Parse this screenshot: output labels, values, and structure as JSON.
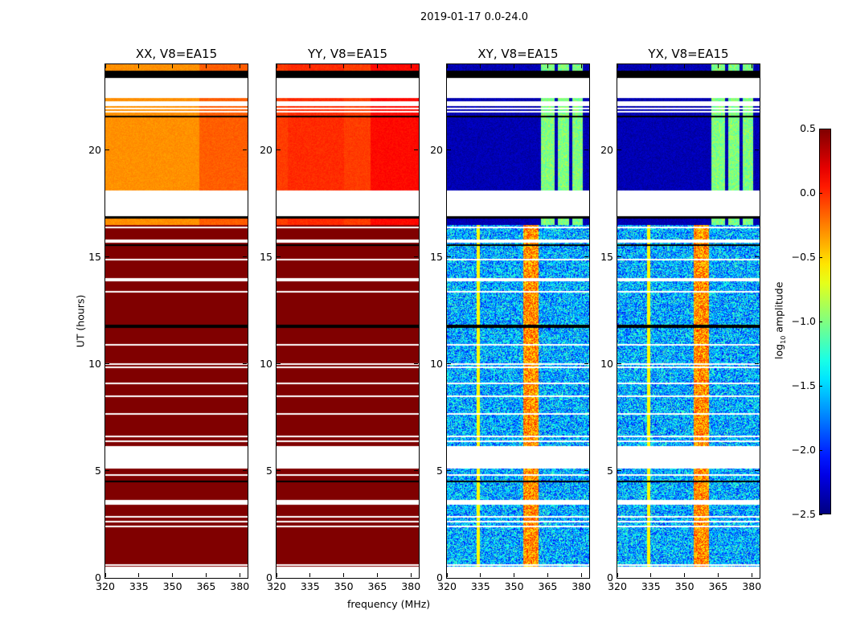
{
  "chart_data": {
    "type": "heatmap",
    "title": "2019-01-17 0.0-24.0",
    "xlabel": "frequency (MHz)",
    "ylabel": "UT (hours)",
    "xlim": [
      320,
      383.5
    ],
    "ylim": [
      0,
      24
    ],
    "xticks": [
      "320",
      "335",
      "350",
      "365",
      "380"
    ],
    "xtick_values": [
      320,
      335,
      350,
      365,
      380
    ],
    "yticks": [
      "0",
      "5",
      "10",
      "15",
      "20"
    ],
    "ytick_values": [
      0,
      5,
      10,
      15,
      20
    ],
    "panels": [
      {
        "title": "XX, V8=EA15",
        "model": "auto",
        "day_level": -0.3,
        "night_level": 0.5
      },
      {
        "title": "YY, V8=EA15",
        "model": "auto",
        "day_level": -0.05,
        "night_level": 0.5
      },
      {
        "title": "XY, V8=EA15",
        "model": "cross",
        "day_level": -2.35,
        "night_level": -1.6
      },
      {
        "title": "YX, V8=EA15",
        "model": "cross",
        "day_level": -2.35,
        "night_level": -1.6
      }
    ],
    "time_segments_hours": [
      {
        "from": 23.7,
        "to": 24.0,
        "kind": "data_day"
      },
      {
        "from": 23.35,
        "to": 23.7,
        "kind": "black"
      },
      {
        "from": 23.04,
        "to": 23.35,
        "kind": "flagged"
      },
      {
        "from": 21.6,
        "to": 23.04,
        "kind": "data_day_sparse"
      },
      {
        "from": 18.12,
        "to": 21.6,
        "kind": "data_day"
      },
      {
        "from": 16.92,
        "to": 18.12,
        "kind": "flagged"
      },
      {
        "from": 16.47,
        "to": 16.92,
        "kind": "data_day"
      },
      {
        "from": 6.15,
        "to": 16.47,
        "kind": "data_night"
      },
      {
        "from": 5.1,
        "to": 6.15,
        "kind": "flagged"
      },
      {
        "from": 0.52,
        "to": 5.1,
        "kind": "data_night"
      },
      {
        "from": 0.0,
        "to": 0.52,
        "kind": "flagged"
      }
    ],
    "colorbar": {
      "label_main": "log",
      "label_sub": "10",
      "label_rest": " amplitude",
      "colormap": "jet",
      "range": [
        -2.5,
        0.5
      ],
      "ticks": [
        "0.5",
        "0.0",
        "−0.5",
        "−1.0",
        "−1.5",
        "−2.0",
        "−2.5"
      ],
      "tick_values": [
        0.5,
        0.0,
        -0.5,
        -1.0,
        -1.5,
        -2.0,
        -2.5
      ]
    }
  }
}
